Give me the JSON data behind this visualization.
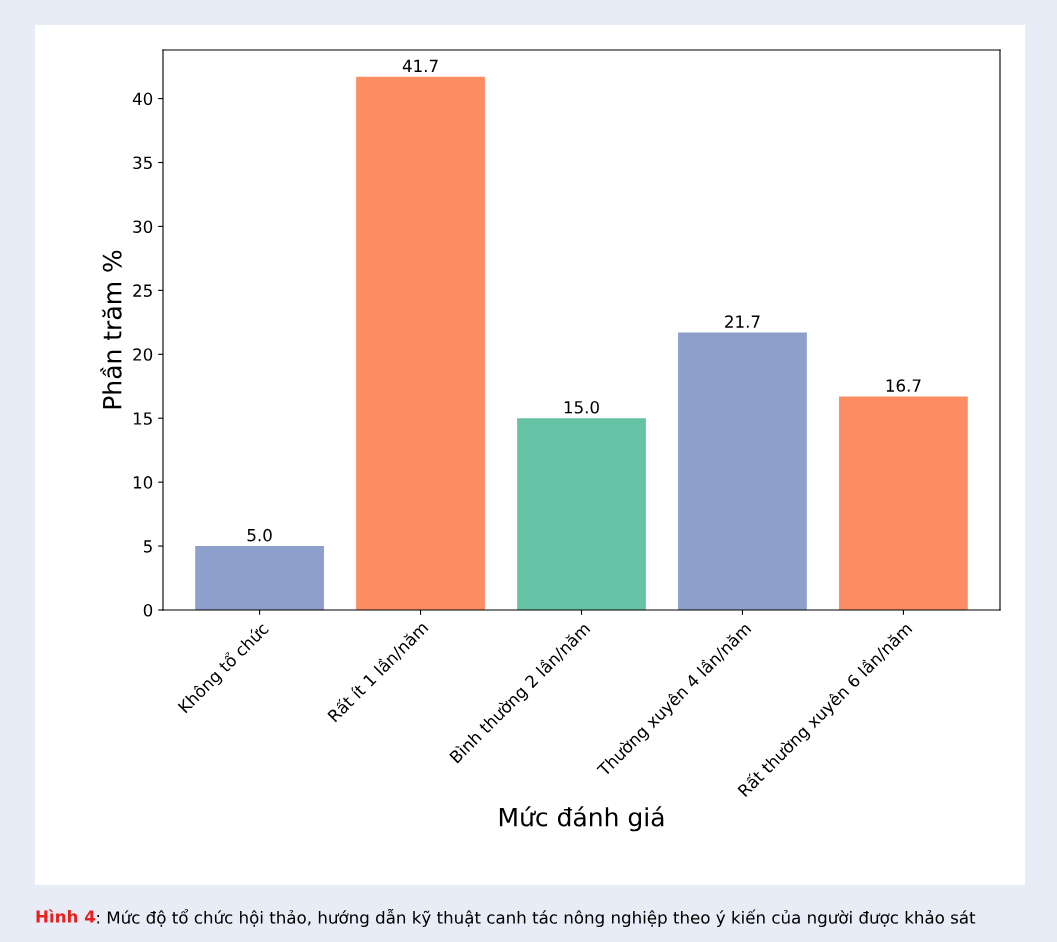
{
  "chart_data": {
    "type": "bar",
    "xlabel": "Mức đánh giá",
    "ylabel": "Phần trăm %",
    "categories": [
      "Không tổ chức",
      "Rất ít 1 lần/năm",
      "Bình thường 2 lần/năm",
      "Thường xuyên 4 lần/năm",
      "Rất thường xuyên 6 lần/năm"
    ],
    "values": [
      5.0,
      41.7,
      15.0,
      21.7,
      16.7
    ],
    "colors": [
      "#8da0cb",
      "#fc8d62",
      "#66c2a5",
      "#8da0cb",
      "#fc8d62"
    ],
    "value_labels": [
      "5.0",
      "41.7",
      "15.0",
      "21.7",
      "16.7"
    ],
    "ylim": [
      0,
      43.8
    ],
    "yticks": [
      0,
      5,
      10,
      15,
      20,
      25,
      30,
      35,
      40
    ],
    "grid": false,
    "legend": false,
    "annotations": [
      "Hình 4",
      ": Mức độ tổ chức hội thảo, hướng dẫn kỹ thuật canh tác nông nghiệp theo ý kiến của người được khảo sát"
    ]
  }
}
